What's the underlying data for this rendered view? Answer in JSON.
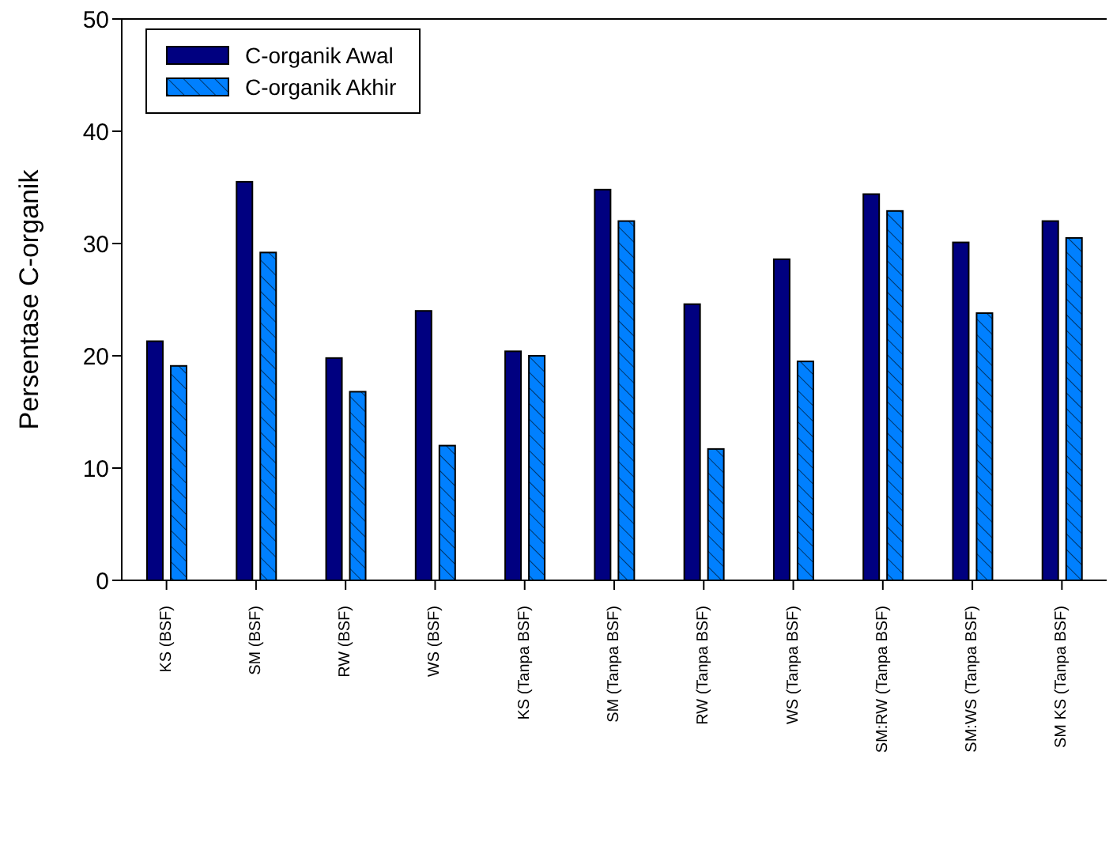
{
  "chart_data": {
    "type": "bar",
    "ylabel": "Persentase C-organik",
    "categories": [
      "KS (BSF)",
      "SM (BSF)",
      "RW (BSF)",
      "WS (BSF)",
      "KS (Tanpa BSF)",
      "SM (Tanpa BSF)",
      "RW (Tanpa BSF)",
      "WS (Tanpa BSF)",
      "SM:RW (Tanpa BSF)",
      "SM:WS (Tanpa BSF)",
      "SM KS (Tanpa BSF)"
    ],
    "series": [
      {
        "name": "C-organik Awal",
        "color": "#000080",
        "values": [
          21.3,
          35.5,
          19.8,
          24.0,
          20.4,
          34.8,
          24.6,
          28.6,
          34.4,
          30.1,
          32.0
        ]
      },
      {
        "name": "C-organik Akhir",
        "color": "#0080ff",
        "values": [
          19.1,
          29.2,
          16.8,
          12.0,
          20.0,
          32.0,
          11.7,
          19.5,
          32.9,
          23.8,
          30.5
        ]
      }
    ],
    "ylim": [
      0,
      50
    ],
    "yticks": [
      0,
      10,
      20,
      30,
      40,
      50
    ],
    "legend": "top left"
  }
}
